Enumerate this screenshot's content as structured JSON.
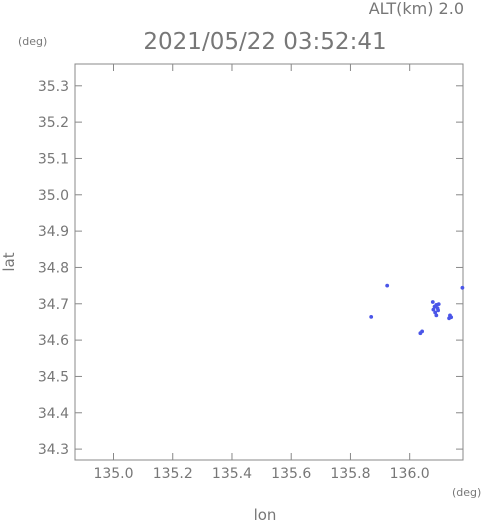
{
  "header": {
    "alt_label": "ALT(km) 2.0",
    "timestamp": "2021/05/22 03:52:41",
    "y_unit": "(deg)",
    "x_unit": "(deg)"
  },
  "chart_data": {
    "type": "scatter",
    "title": "2021/05/22 03:52:41",
    "xlabel": "lon",
    "ylabel": "lat",
    "xlim": [
      134.87,
      136.18
    ],
    "ylim": [
      34.27,
      35.36
    ],
    "x_ticks": [
      "135.0",
      "135.2",
      "135.4",
      "135.6",
      "135.8",
      "136.0"
    ],
    "y_ticks": [
      "35.3",
      "35.2",
      "35.1",
      "35.0",
      "34.9",
      "34.8",
      "34.7",
      "34.6",
      "34.5",
      "34.4",
      "34.3"
    ],
    "grid": false,
    "point_color": "#4a55e8",
    "points": [
      {
        "x": 135.924,
        "y": 34.75
      },
      {
        "x": 136.178,
        "y": 34.744
      },
      {
        "x": 136.078,
        "y": 34.705
      },
      {
        "x": 136.09,
        "y": 34.697
      },
      {
        "x": 136.098,
        "y": 34.699
      },
      {
        "x": 136.084,
        "y": 34.692
      },
      {
        "x": 136.094,
        "y": 34.688
      },
      {
        "x": 136.08,
        "y": 34.684
      },
      {
        "x": 136.096,
        "y": 34.682
      },
      {
        "x": 136.086,
        "y": 34.676
      },
      {
        "x": 136.09,
        "y": 34.668
      },
      {
        "x": 136.136,
        "y": 34.668
      },
      {
        "x": 136.14,
        "y": 34.663
      },
      {
        "x": 136.133,
        "y": 34.66
      },
      {
        "x": 135.87,
        "y": 34.664
      },
      {
        "x": 136.042,
        "y": 34.624
      },
      {
        "x": 136.036,
        "y": 34.619
      }
    ]
  }
}
